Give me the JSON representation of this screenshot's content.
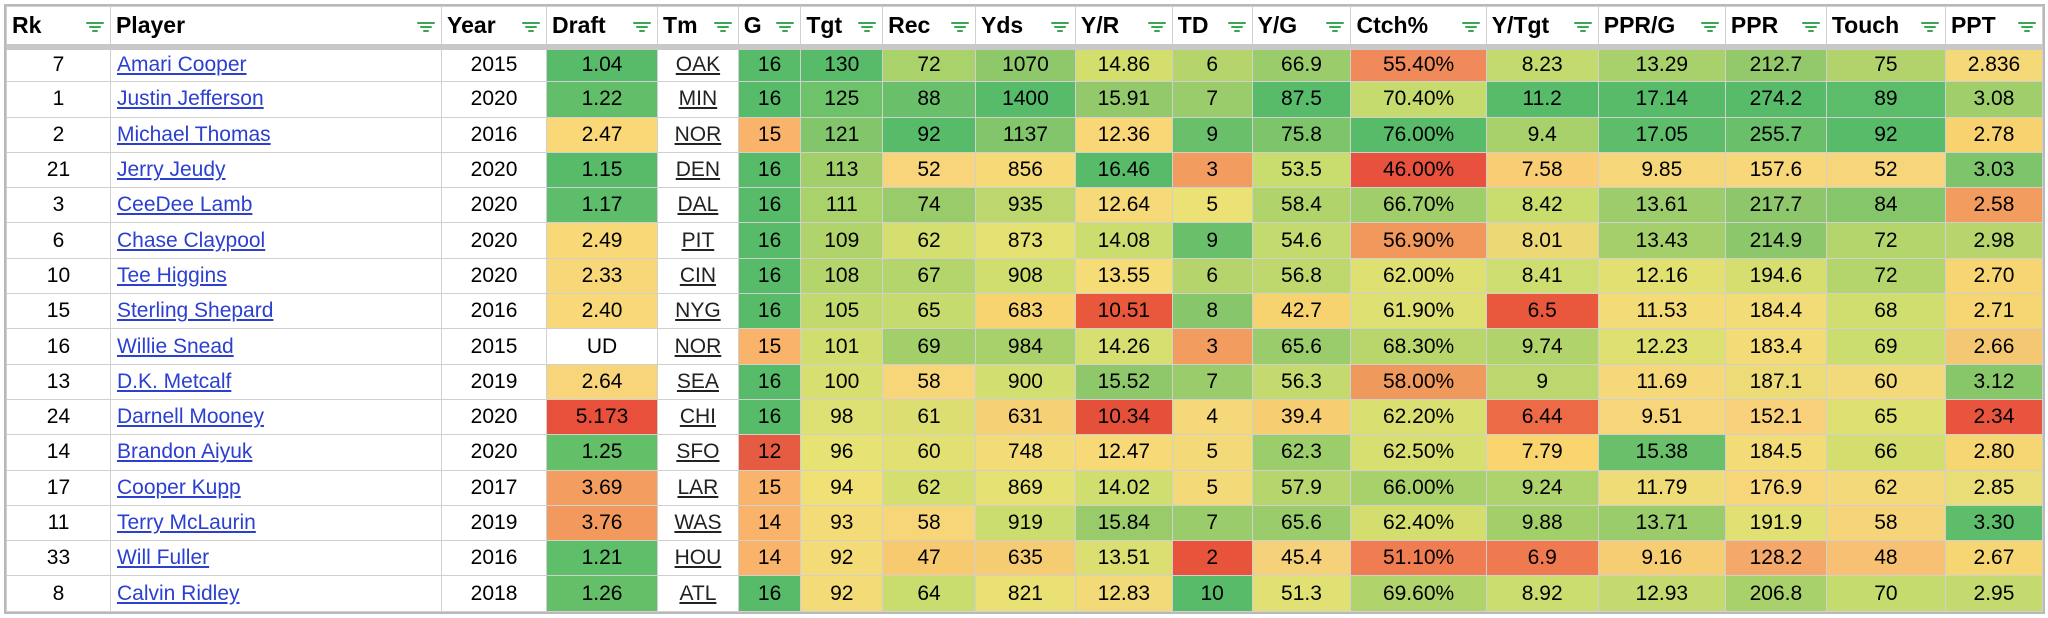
{
  "columns": [
    "Rk",
    "Player",
    "Year",
    "Draft",
    "Tm",
    "G",
    "Tgt",
    "Rec",
    "Yds",
    "Y/R",
    "TD",
    "Y/G",
    "Ctch%",
    "Y/Tgt",
    "PPR/G",
    "PPR",
    "Touch",
    "PPT"
  ],
  "rows": [
    [
      "7",
      "Amari Cooper",
      "2015",
      "1.04",
      "OAK",
      "16",
      "130",
      "72",
      "1070",
      "14.86",
      "6",
      "66.9",
      "55.40%",
      "8.23",
      "13.29",
      "212.7",
      "75",
      "2.836"
    ],
    [
      "1",
      "Justin Jefferson",
      "2020",
      "1.22",
      "MIN",
      "16",
      "125",
      "88",
      "1400",
      "15.91",
      "7",
      "87.5",
      "70.40%",
      "11.2",
      "17.14",
      "274.2",
      "89",
      "3.08"
    ],
    [
      "2",
      "Michael Thomas",
      "2016",
      "2.47",
      "NOR",
      "15",
      "121",
      "92",
      "1137",
      "12.36",
      "9",
      "75.8",
      "76.00%",
      "9.4",
      "17.05",
      "255.7",
      "92",
      "2.78"
    ],
    [
      "21",
      "Jerry Jeudy",
      "2020",
      "1.15",
      "DEN",
      "16",
      "113",
      "52",
      "856",
      "16.46",
      "3",
      "53.5",
      "46.00%",
      "7.58",
      "9.85",
      "157.6",
      "52",
      "3.03"
    ],
    [
      "3",
      "CeeDee Lamb",
      "2020",
      "1.17",
      "DAL",
      "16",
      "111",
      "74",
      "935",
      "12.64",
      "5",
      "58.4",
      "66.70%",
      "8.42",
      "13.61",
      "217.7",
      "84",
      "2.58"
    ],
    [
      "6",
      "Chase Claypool",
      "2020",
      "2.49",
      "PIT",
      "16",
      "109",
      "62",
      "873",
      "14.08",
      "9",
      "54.6",
      "56.90%",
      "8.01",
      "13.43",
      "214.9",
      "72",
      "2.98"
    ],
    [
      "10",
      "Tee Higgins",
      "2020",
      "2.33",
      "CIN",
      "16",
      "108",
      "67",
      "908",
      "13.55",
      "6",
      "56.8",
      "62.00%",
      "8.41",
      "12.16",
      "194.6",
      "72",
      "2.70"
    ],
    [
      "15",
      "Sterling Shepard",
      "2016",
      "2.40",
      "NYG",
      "16",
      "105",
      "65",
      "683",
      "10.51",
      "8",
      "42.7",
      "61.90%",
      "6.5",
      "11.53",
      "184.4",
      "68",
      "2.71"
    ],
    [
      "16",
      "Willie Snead",
      "2015",
      "UD",
      "NOR",
      "15",
      "101",
      "69",
      "984",
      "14.26",
      "3",
      "65.6",
      "68.30%",
      "9.74",
      "12.23",
      "183.4",
      "69",
      "2.66"
    ],
    [
      "13",
      "D.K. Metcalf",
      "2019",
      "2.64",
      "SEA",
      "16",
      "100",
      "58",
      "900",
      "15.52",
      "7",
      "56.3",
      "58.00%",
      "9",
      "11.69",
      "187.1",
      "60",
      "3.12"
    ],
    [
      "24",
      "Darnell Mooney",
      "2020",
      "5.173",
      "CHI",
      "16",
      "98",
      "61",
      "631",
      "10.34",
      "4",
      "39.4",
      "62.20%",
      "6.44",
      "9.51",
      "152.1",
      "65",
      "2.34"
    ],
    [
      "14",
      "Brandon Aiyuk",
      "2020",
      "1.25",
      "SFO",
      "12",
      "96",
      "60",
      "748",
      "12.47",
      "5",
      "62.3",
      "62.50%",
      "7.79",
      "15.38",
      "184.5",
      "66",
      "2.80"
    ],
    [
      "17",
      "Cooper Kupp",
      "2017",
      "3.69",
      "LAR",
      "15",
      "94",
      "62",
      "869",
      "14.02",
      "5",
      "57.9",
      "66.00%",
      "9.24",
      "11.79",
      "176.9",
      "62",
      "2.85"
    ],
    [
      "11",
      "Terry McLaurin",
      "2019",
      "3.76",
      "WAS",
      "14",
      "93",
      "58",
      "919",
      "15.84",
      "7",
      "65.6",
      "62.40%",
      "9.88",
      "13.71",
      "191.9",
      "58",
      "3.30"
    ],
    [
      "33",
      "Will Fuller",
      "2016",
      "1.21",
      "HOU",
      "14",
      "92",
      "47",
      "635",
      "13.51",
      "2",
      "45.4",
      "51.10%",
      "6.9",
      "9.16",
      "128.2",
      "48",
      "2.67"
    ],
    [
      "8",
      "Calvin Ridley",
      "2018",
      "1.26",
      "ATL",
      "16",
      "92",
      "64",
      "821",
      "12.83",
      "10",
      "51.3",
      "69.60%",
      "8.92",
      "12.93",
      "206.8",
      "70",
      "2.95"
    ]
  ],
  "cell_colors": [
    [
      null,
      null,
      null,
      "#57bb6a",
      null,
      "#57bb6a",
      "#57bb6a",
      "#a9d26b",
      "#8fc86b",
      "#d3de6d",
      "#b5d56c",
      "#9acc6b",
      "#f08a5b",
      "#c3da6e",
      "#a8d16b",
      "#93c96b",
      "#b2d36b",
      "#f5d878"
    ],
    [
      null,
      null,
      null,
      "#62be69",
      null,
      "#57bb6a",
      "#6ec26a",
      "#6ac06a",
      "#57bb6a",
      "#93c96b",
      "#9acc6b",
      "#57bb6a",
      "#c6db6e",
      "#57bb6a",
      "#57bb6a",
      "#57bb6a",
      "#5bbc6a",
      "#a0ce6b"
    ],
    [
      null,
      null,
      null,
      "#fad878",
      null,
      "#f9b36a",
      "#83c56a",
      "#57bb6a",
      "#82c56a",
      "#f9d777",
      "#6ac06a",
      "#7dc46a",
      "#57bb6a",
      "#a9d16b",
      "#5ebd6a",
      "#6ac06a",
      "#57bb6a",
      "#f8d26f"
    ],
    [
      null,
      null,
      null,
      "#57bb6a",
      null,
      "#57bb6a",
      "#a3cf6b",
      "#f8d47a",
      "#f6da78",
      "#57bb6a",
      "#f39c60",
      "#c9dc6e",
      "#e8513d",
      "#f9cd73",
      "#f5d779",
      "#f8d77a",
      "#f7d57b",
      "#7dc46a"
    ],
    [
      null,
      null,
      null,
      "#5dbd6a",
      null,
      "#57bb6a",
      "#aad26b",
      "#99cb6b",
      "#bcd76d",
      "#f6d978",
      "#ebe175",
      "#b1d36c",
      "#9fce6b",
      "#c9dc6e",
      "#9ccc6b",
      "#8ec76b",
      "#86c66a",
      "#f39c60"
    ],
    [
      null,
      null,
      null,
      "#f9d878",
      null,
      "#57bb6a",
      "#b1d36c",
      "#d4df70",
      "#e4e172",
      "#cadd6e",
      "#6ac06a",
      "#c3da6e",
      "#f1985d",
      "#ecd875",
      "#a4cf6b",
      "#8cc76b",
      "#b4d46c",
      "#b7d56c"
    ],
    [
      null,
      null,
      null,
      "#f7d777",
      null,
      "#57bb6a",
      "#b4d46c",
      "#b4d46c",
      "#cfde6e",
      "#f5dc77",
      "#b5d56c",
      "#bfd86d",
      "#dfe072",
      "#cddd6f",
      "#e3e072",
      "#d5de6f",
      "#b4d46c",
      "#f6d572"
    ],
    [
      null,
      null,
      null,
      "#f8d879",
      null,
      "#57bb6a",
      "#c1d96d",
      "#c6db6e",
      "#f7d470",
      "#e9573d",
      "#87c66b",
      "#f7d370",
      "#dee072",
      "#e9573d",
      "#f3db77",
      "#f2dc77",
      "#cfde6e",
      "#f6d573"
    ],
    [
      null,
      null,
      null,
      null,
      null,
      "#f9b36a",
      "#d1de6f",
      "#a3cf6b",
      "#a8d16b",
      "#d6df6f",
      "#f39c60",
      "#9acc6b",
      "#b9d66d",
      "#b1d36c",
      "#deE072",
      "#f3dc77",
      "#cadd6e",
      "#f4c872"
    ],
    [
      null,
      null,
      null,
      "#f8d57a",
      null,
      "#57bb6a",
      "#d6df70",
      "#f7d67a",
      "#d2de6f",
      "#8fc86b",
      "#9acc6b",
      "#c5da6e",
      "#ef995d",
      "#bcd76d",
      "#f4d879",
      "#ecdb76",
      "#f2d979",
      "#88c66a"
    ],
    [
      null,
      null,
      null,
      "#e8503c",
      null,
      "#57bb6a",
      "#dde072",
      "#ddde72",
      "#f6d074",
      "#e5503b",
      "#f4d87a",
      "#f7cd72",
      "#d9df70",
      "#ec6a45",
      "#f7d57b",
      "#f9d17a",
      "#dee072",
      "#e8543d"
    ],
    [
      null,
      null,
      null,
      "#64bf69",
      null,
      "#e65c42",
      "#e7e274",
      "#e2e073",
      "#f3db77",
      "#f8d978",
      "#f4d979",
      "#9ccd6b",
      "#d6df6f",
      "#f9d46f",
      "#6ac06a",
      "#f3dc77",
      "#d4de6f",
      "#f6d673"
    ],
    [
      null,
      null,
      null,
      "#f39e60",
      null,
      "#f9b36a",
      "#f0e076",
      "#d4df70",
      "#e6e173",
      "#d0dd6f",
      "#f4d979",
      "#b6d56d",
      "#a8d16b",
      "#aed26c",
      "#f0dc77",
      "#f7d67a",
      "#f3d97a",
      "#e8dd76"
    ],
    [
      null,
      null,
      null,
      "#f2995e",
      null,
      "#f9b36a",
      "#f3db77",
      "#f7d67a",
      "#cbdd6e",
      "#9acb6b",
      "#9acc6b",
      "#9acc6b",
      "#d4de6f",
      "#a3cf6b",
      "#9acc6b",
      "#e0e073",
      "#f6d57a",
      "#5dbd6a"
    ],
    [
      null,
      null,
      null,
      "#5fbe69",
      null,
      "#f9b36a",
      "#f3db77",
      "#f8ca70",
      "#f5cc72",
      "#dbdf72",
      "#e8533b",
      "#f5d279",
      "#f07d52",
      "#f07a50",
      "#f7cd73",
      "#f4a869",
      "#f8c072",
      "#f5d673"
    ],
    [
      null,
      null,
      null,
      "#65bf69",
      null,
      "#57bb6a",
      "#f3db77",
      "#c9dc6e",
      "#e9e174",
      "#f1da77",
      "#57bb6a",
      "#e0e073",
      "#b0d36c",
      "#ccdd6f",
      "#c4da6e",
      "#a9d16b",
      "#c6db6e",
      "#c4da6e"
    ]
  ]
}
